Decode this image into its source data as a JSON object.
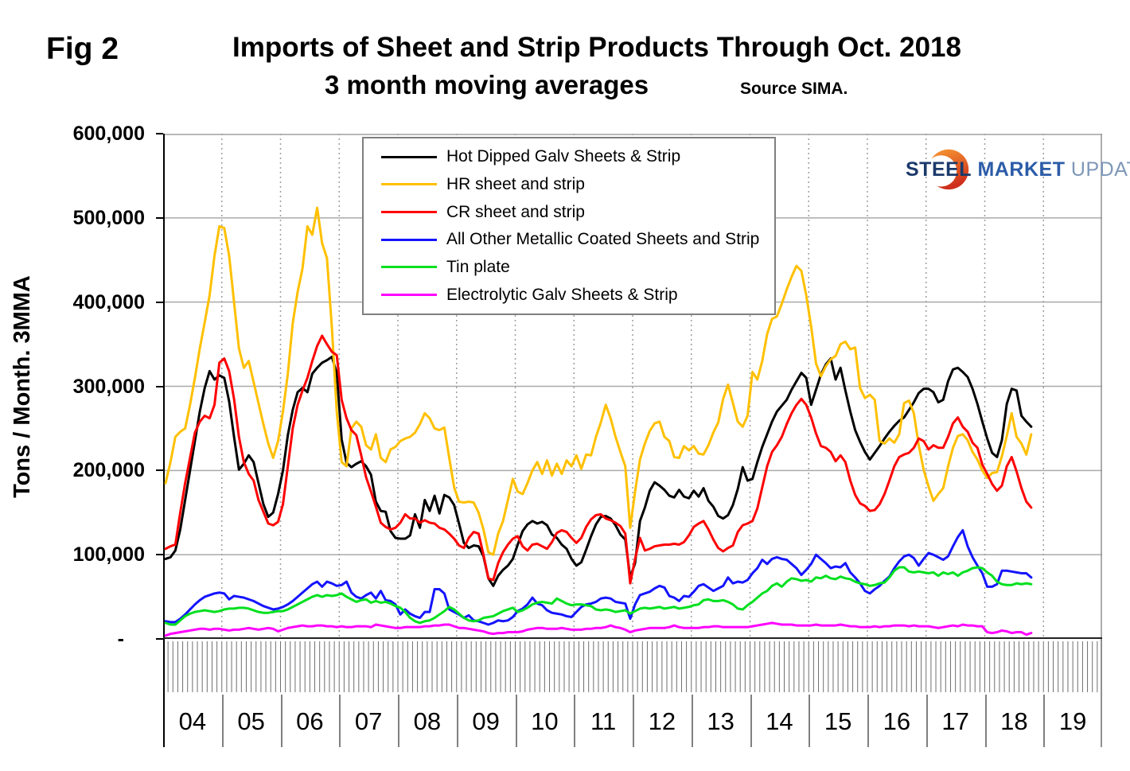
{
  "fig_label": "Fig 2",
  "logo": {
    "steel": "STEEL",
    "market": "MARKET",
    "update": "UPDATE"
  },
  "chart_data": {
    "type": "line",
    "title": "Imports of Sheet and Strip Products Through Oct. 2018",
    "subtitle": "3 month moving averages",
    "source": "Source SIMA.",
    "ylabel": "Tons / Month. 3MMA",
    "ylim": [
      0,
      600000
    ],
    "ytick_labels_top_down": [
      "600,000",
      "500,000",
      "400,000",
      "300,000",
      "200,000",
      "100,000",
      "-"
    ],
    "x_year_labels": [
      "04",
      "05",
      "06",
      "07",
      "08",
      "09",
      "10",
      "11",
      "12",
      "13",
      "14",
      "15",
      "16",
      "17",
      "18",
      "19"
    ],
    "x_start": "2004-01",
    "x_end": "2018-10",
    "x_unit": "month",
    "grid": {
      "horizontal": "solid gray at each 100,000",
      "vertical": "dotted gray at year boundaries",
      "monthly_tick_comb_below_axis": true
    },
    "legend_position": "inset top-left",
    "values_scale": 1000,
    "values_unit": "tons per month (values stored in thousands)",
    "series": [
      {
        "name": "Hot Dipped Galv Sheets & Strip",
        "color": "#000000",
        "values": [
          95,
          97,
          105,
          130,
          165,
          200,
          235,
          270,
          298,
          318,
          308,
          313,
          310,
          282,
          240,
          201,
          208,
          218,
          210,
          185,
          160,
          145,
          150,
          172,
          200,
          242,
          272,
          293,
          298,
          293,
          315,
          322,
          328,
          331,
          335,
          316,
          237,
          209,
          204,
          208,
          211,
          205,
          195,
          163,
          152,
          151,
          128,
          120,
          119,
          119,
          123,
          148,
          132,
          165,
          152,
          170,
          149,
          171,
          168,
          159,
          137,
          114,
          108,
          111,
          110,
          98,
          72,
          63,
          75,
          82,
          87,
          95,
          112,
          128,
          136,
          140,
          137,
          139,
          135,
          124,
          120,
          112,
          107,
          95,
          87,
          91,
          106,
          122,
          136,
          145,
          146,
          143,
          135,
          124,
          118,
          73,
          90,
          140,
          156,
          176,
          186,
          182,
          177,
          170,
          168,
          177,
          169,
          167,
          176,
          169,
          179,
          164,
          157,
          146,
          143,
          147,
          159,
          178,
          204,
          188,
          190,
          210,
          228,
          243,
          258,
          270,
          277,
          284,
          296,
          306,
          316,
          310,
          278,
          296,
          314,
          326,
          333,
          308,
          322,
          295,
          270,
          248,
          234,
          222,
          213,
          221,
          229,
          238,
          246,
          253,
          259,
          263,
          272,
          281,
          292,
          297,
          297,
          293,
          281,
          284,
          306,
          320,
          322,
          317,
          311,
          297,
          279,
          258,
          238,
          221,
          216,
          236,
          279,
          297,
          295,
          265,
          258,
          252
        ]
      },
      {
        "name": "HR sheet and strip",
        "color": "#FFC000",
        "values": [
          185,
          210,
          240,
          246,
          250,
          278,
          310,
          345,
          376,
          408,
          455,
          490,
          488,
          455,
          400,
          345,
          322,
          330,
          305,
          280,
          255,
          232,
          215,
          235,
          270,
          315,
          375,
          412,
          440,
          490,
          480,
          512,
          470,
          452,
          370,
          270,
          210,
          205,
          250,
          258,
          252,
          230,
          225,
          243,
          215,
          210,
          225,
          228,
          235,
          238,
          240,
          245,
          255,
          268,
          262,
          250,
          248,
          251,
          215,
          180,
          163,
          162,
          163,
          162,
          150,
          130,
          103,
          100,
          125,
          140,
          165,
          190,
          175,
          172,
          185,
          200,
          210,
          196,
          212,
          194,
          208,
          196,
          212,
          205,
          218,
          202,
          219,
          218,
          240,
          257,
          278,
          262,
          240,
          222,
          205,
          132,
          175,
          213,
          232,
          247,
          256,
          258,
          240,
          235,
          216,
          215,
          229,
          224,
          229,
          220,
          219,
          230,
          245,
          257,
          285,
          302,
          280,
          258,
          252,
          265,
          317,
          308,
          330,
          362,
          380,
          383,
          398,
          415,
          430,
          443,
          437,
          408,
          371,
          327,
          312,
          324,
          332,
          336,
          350,
          353,
          344,
          346,
          298,
          286,
          290,
          284,
          235,
          232,
          238,
          233,
          243,
          280,
          283,
          268,
          230,
          201,
          181,
          164,
          172,
          179,
          205,
          227,
          241,
          243,
          236,
          222,
          213,
          200,
          191,
          197,
          198,
          217,
          241,
          268,
          240,
          232,
          219,
          243
        ]
      },
      {
        "name": "CR sheet and strip",
        "color": "#FF0000",
        "values": [
          107,
          110,
          112,
          150,
          185,
          215,
          245,
          258,
          265,
          262,
          278,
          328,
          333,
          318,
          285,
          240,
          210,
          196,
          188,
          165,
          151,
          137,
          135,
          139,
          160,
          205,
          250,
          278,
          295,
          310,
          330,
          348,
          360,
          350,
          341,
          337,
          284,
          262,
          248,
          242,
          218,
          192,
          175,
          157,
          138,
          133,
          130,
          132,
          138,
          148,
          143,
          143,
          138,
          141,
          138,
          137,
          132,
          130,
          125,
          119,
          111,
          108,
          120,
          127,
          125,
          100,
          72,
          70,
          90,
          103,
          112,
          119,
          122,
          110,
          105,
          112,
          113,
          110,
          107,
          115,
          126,
          129,
          127,
          120,
          114,
          120,
          133,
          142,
          147,
          148,
          143,
          141,
          138,
          134,
          125,
          66,
          95,
          120,
          105,
          107,
          110,
          111,
          112,
          112,
          113,
          112,
          115,
          123,
          133,
          137,
          140,
          130,
          118,
          108,
          104,
          108,
          111,
          127,
          135,
          137,
          140,
          155,
          180,
          205,
          222,
          230,
          240,
          255,
          268,
          278,
          285,
          278,
          263,
          244,
          229,
          227,
          222,
          211,
          218,
          210,
          188,
          171,
          161,
          158,
          152,
          153,
          160,
          172,
          188,
          205,
          216,
          219,
          221,
          227,
          238,
          235,
          225,
          230,
          227,
          227,
          240,
          256,
          263,
          252,
          246,
          233,
          227,
          207,
          196,
          184,
          176,
          182,
          205,
          216,
          199,
          179,
          163,
          156
        ]
      },
      {
        "name": "All Other Metallic Coated Sheets and Strip",
        "color": "#1414FF",
        "values": [
          21,
          20,
          20,
          24,
          29,
          35,
          41,
          46,
          50,
          52,
          54,
          55,
          54,
          47,
          51,
          50,
          49,
          47,
          45,
          42,
          39,
          37,
          35,
          36,
          38,
          41,
          45,
          50,
          55,
          60,
          65,
          68,
          62,
          68,
          66,
          63,
          64,
          68,
          55,
          50,
          48,
          52,
          55,
          48,
          57,
          46,
          45,
          41,
          29,
          35,
          30,
          27,
          25,
          32,
          32,
          59,
          59,
          54,
          35,
          32,
          29,
          25,
          28,
          22,
          21,
          19,
          17,
          19,
          22,
          21,
          22,
          26,
          33,
          36,
          41,
          49,
          42,
          40,
          34,
          31,
          30,
          29,
          27,
          26,
          32,
          38,
          41,
          42,
          44,
          48,
          49,
          48,
          44,
          43,
          42,
          24,
          41,
          52,
          54,
          56,
          60,
          63,
          61,
          51,
          49,
          45,
          51,
          50,
          56,
          63,
          65,
          61,
          57,
          60,
          63,
          73,
          66,
          68,
          67,
          70,
          78,
          84,
          94,
          89,
          95,
          97,
          95,
          94,
          89,
          84,
          76,
          82,
          89,
          100,
          95,
          90,
          84,
          86,
          85,
          90,
          79,
          73,
          66,
          57,
          54,
          59,
          63,
          69,
          74,
          84,
          92,
          98,
          100,
          96,
          87,
          95,
          102,
          100,
          97,
          94,
          98,
          110,
          121,
          129,
          110,
          97,
          87,
          78,
          62,
          62,
          65,
          81,
          81,
          80,
          79,
          78,
          78,
          73
        ]
      },
      {
        "name": "Tin plate",
        "color": "#00E01E",
        "values": [
          19,
          17,
          17,
          22,
          27,
          30,
          32,
          33,
          34,
          33,
          32,
          33,
          35,
          36,
          36,
          37,
          37,
          36,
          34,
          32,
          31,
          31,
          32,
          33,
          33,
          35,
          38,
          41,
          44,
          47,
          50,
          52,
          50,
          52,
          51,
          52,
          54,
          50,
          47,
          44,
          46,
          47,
          43,
          45,
          43,
          44,
          42,
          39,
          37,
          32,
          25,
          21,
          19,
          21,
          22,
          25,
          29,
          33,
          38,
          35,
          30,
          25,
          22,
          21,
          22,
          25,
          26,
          27,
          30,
          33,
          35,
          37,
          32,
          34,
          37,
          41,
          43,
          44,
          43,
          42,
          48,
          45,
          42,
          40,
          41,
          41,
          40,
          39,
          35,
          34,
          35,
          34,
          32,
          33,
          34,
          30,
          33,
          36,
          37,
          36,
          37,
          38,
          36,
          37,
          38,
          36,
          37,
          38,
          40,
          41,
          46,
          47,
          45,
          45,
          46,
          44,
          41,
          36,
          35,
          40,
          44,
          49,
          54,
          57,
          63,
          66,
          62,
          68,
          72,
          71,
          69,
          70,
          68,
          73,
          72,
          75,
          72,
          71,
          74,
          72,
          71,
          68,
          66,
          65,
          63,
          64,
          66,
          67,
          73,
          81,
          85,
          85,
          80,
          79,
          80,
          79,
          78,
          79,
          75,
          79,
          77,
          79,
          75,
          79,
          81,
          84,
          85,
          84,
          79,
          75,
          68,
          65,
          64,
          64,
          66,
          65,
          66,
          65
        ]
      },
      {
        "name": "Electrolytic Galv Sheets & Strip",
        "color": "#FF00FF",
        "values": [
          4,
          6,
          7,
          8,
          9,
          10,
          11,
          12,
          12,
          11,
          12,
          12,
          11,
          10,
          11,
          11,
          12,
          13,
          12,
          11,
          12,
          13,
          12,
          9,
          11,
          13,
          14,
          15,
          16,
          15,
          15,
          16,
          16,
          15,
          15,
          14,
          15,
          14,
          14,
          15,
          15,
          15,
          14,
          17,
          16,
          15,
          14,
          13,
          13,
          14,
          14,
          14,
          14,
          15,
          15,
          16,
          16,
          17,
          17,
          15,
          13,
          13,
          12,
          11,
          10,
          9,
          7,
          6,
          7,
          7,
          8,
          8,
          8,
          9,
          11,
          12,
          13,
          13,
          12,
          12,
          12,
          13,
          12,
          11,
          11,
          11,
          12,
          12,
          13,
          13,
          14,
          16,
          14,
          13,
          11,
          8,
          10,
          11,
          12,
          13,
          13,
          13,
          13,
          14,
          16,
          14,
          13,
          13,
          13,
          13,
          14,
          14,
          15,
          15,
          14,
          14,
          14,
          14,
          14,
          14,
          15,
          16,
          17,
          18,
          19,
          18,
          17,
          17,
          17,
          16,
          16,
          16,
          16,
          17,
          16,
          16,
          16,
          16,
          17,
          16,
          15,
          15,
          14,
          14,
          14,
          15,
          14,
          15,
          15,
          16,
          16,
          16,
          15,
          16,
          15,
          15,
          15,
          14,
          13,
          14,
          15,
          16,
          15,
          17,
          16,
          16,
          15,
          15,
          8,
          7,
          8,
          10,
          9,
          7,
          8,
          8,
          5,
          7
        ]
      }
    ]
  }
}
